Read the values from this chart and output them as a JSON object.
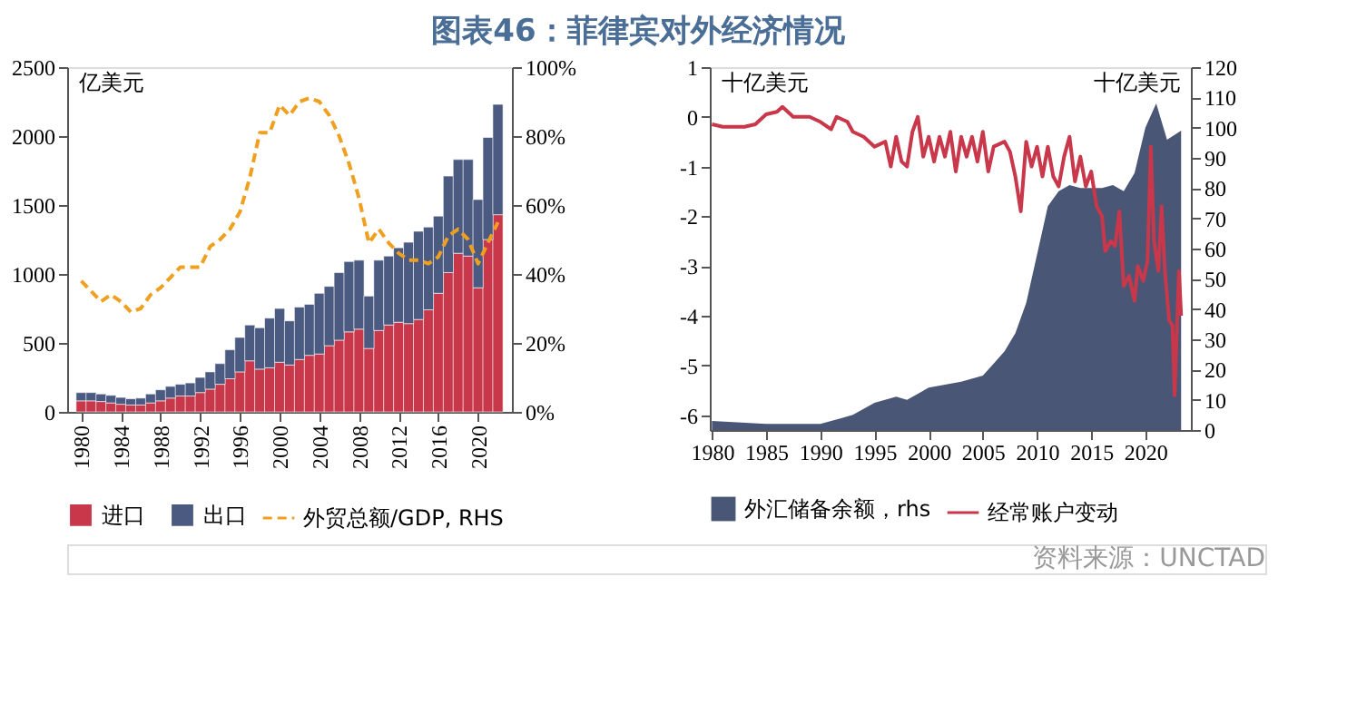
{
  "chart_data": [
    {
      "type": "bar",
      "title": "图表46：菲律宾对外经济情况",
      "stacked": true,
      "ylabel": "亿美元",
      "legend": "bottom",
      "grid": false,
      "x": [
        1980,
        1981,
        1982,
        1983,
        1984,
        1985,
        1986,
        1987,
        1988,
        1989,
        1990,
        1991,
        1992,
        1993,
        1994,
        1995,
        1996,
        1997,
        1998,
        1999,
        2000,
        2001,
        2002,
        2003,
        2004,
        2005,
        2006,
        2007,
        2008,
        2009,
        2010,
        2011,
        2012,
        2013,
        2014,
        2015,
        2016,
        2017,
        2018,
        2019,
        2020,
        2021,
        2022
      ],
      "xlim": [
        1979.5,
        2022.5
      ],
      "xticks": [
        1980,
        1984,
        1988,
        1992,
        1996,
        2000,
        2004,
        2008,
        2012,
        2016,
        2020
      ],
      "ylim": [
        0,
        2500
      ],
      "yticks": [
        0,
        500,
        1000,
        1500,
        2000,
        2500
      ],
      "y2lim": [
        0,
        100
      ],
      "y2ticks": [
        {
          "value": 0,
          "label": "0%"
        },
        {
          "value": 20,
          "label": "20%"
        },
        {
          "value": 40,
          "label": "40%"
        },
        {
          "value": 60,
          "label": "60%"
        },
        {
          "value": 80,
          "label": "80%"
        },
        {
          "value": 100,
          "label": "100%"
        }
      ],
      "series": [
        {
          "name": "进口",
          "type": "bar",
          "color": "#c8374a",
          "values": [
            80,
            80,
            75,
            65,
            55,
            50,
            50,
            65,
            80,
            100,
            115,
            115,
            140,
            165,
            200,
            240,
            290,
            370,
            310,
            320,
            360,
            340,
            380,
            410,
            420,
            480,
            520,
            580,
            600,
            460,
            590,
            630,
            650,
            640,
            670,
            740,
            860,
            1010,
            1150,
            1130,
            900,
            1250,
            1430
          ]
        },
        {
          "name": "出口",
          "type": "bar",
          "color": "#4a5a80",
          "values": [
            60,
            60,
            55,
            55,
            50,
            45,
            50,
            65,
            80,
            85,
            85,
            95,
            110,
            125,
            150,
            210,
            250,
            260,
            300,
            360,
            390,
            320,
            380,
            370,
            440,
            430,
            490,
            510,
            500,
            380,
            510,
            500,
            540,
            590,
            640,
            600,
            560,
            700,
            680,
            700,
            640,
            740,
            800
          ]
        },
        {
          "name": "外贸总额/GDP, RHS",
          "type": "line",
          "axis": "y2",
          "line_style": "dashed",
          "color": "#f0a020",
          "values": [
            38,
            35,
            32,
            34,
            32,
            29,
            30,
            34,
            36,
            39,
            42,
            42,
            42,
            48,
            50,
            53,
            58,
            68,
            81,
            81,
            89,
            86,
            90,
            91,
            90,
            86,
            80,
            72,
            62,
            49,
            53,
            49,
            46,
            44,
            44,
            43,
            45,
            51,
            53,
            50,
            43,
            49,
            55
          ]
        }
      ]
    },
    {
      "type": "line",
      "ylabel": "十亿美元",
      "y2label": "十亿美元",
      "legend": "bottom",
      "grid": false,
      "annotations": [
        "资料来源：UNCTAD"
      ],
      "xlim": [
        1979.8,
        2024.2
      ],
      "xticks": [
        1980,
        1985,
        1990,
        1995,
        2000,
        2005,
        2010,
        2015,
        2020
      ],
      "ylim": [
        -6.3,
        1
      ],
      "yticks": [
        -6,
        -5,
        -4,
        -3,
        -2,
        -1,
        0,
        1
      ],
      "y2lim": [
        0,
        120
      ],
      "y2ticks": [
        0,
        10,
        20,
        30,
        40,
        50,
        60,
        70,
        80,
        90,
        100,
        110,
        120
      ],
      "series": [
        {
          "name": "外汇储备余额，rhs",
          "type": "area",
          "axis": "y2",
          "color": "#4a5675",
          "x": [
            1980,
            1985,
            1990,
            1992,
            1993,
            1995,
            1997,
            1998,
            2000,
            2003,
            2005,
            2006,
            2007,
            2008,
            2009,
            2010,
            2011,
            2012,
            2013,
            2014,
            2015,
            2016,
            2017,
            2018,
            2019,
            2020,
            2021,
            2022,
            2023.3
          ],
          "values": [
            3,
            2,
            2,
            4,
            5,
            9,
            11,
            10,
            14,
            16,
            18,
            22,
            26,
            32,
            42,
            58,
            74,
            79,
            81,
            80,
            80,
            80,
            81,
            79,
            85,
            100,
            108,
            96,
            99
          ]
        },
        {
          "name": "经常账户变动",
          "type": "line",
          "color": "#c8374a",
          "x": [
            1980,
            1981,
            1982,
            1983,
            1984,
            1985,
            1986,
            1986.5,
            1987.5,
            1989,
            1990,
            1991,
            1991.5,
            1992.5,
            1993,
            1994,
            1995,
            1996,
            1996.5,
            1997,
            1997.5,
            1998,
            1998.5,
            1999,
            1999.5,
            2000,
            2000.5,
            2001,
            2001.5,
            2002,
            2002.5,
            2003,
            2003.5,
            2004,
            2004.5,
            2005,
            2005.5,
            2006,
            2007,
            2007.5,
            2008,
            2008.5,
            2009,
            2009.5,
            2010,
            2010.5,
            2011,
            2011.5,
            2012,
            2012.5,
            2013,
            2013.5,
            2014,
            2014.5,
            2015,
            2015.5,
            2016,
            2016.3,
            2016.8,
            2017.2,
            2017.6,
            2018,
            2018.5,
            2019,
            2019.3,
            2019.8,
            2020.2,
            2020.5,
            2020.8,
            2021.2,
            2021.5,
            2021.8,
            2022.2,
            2022.5,
            2022.7,
            2023.1,
            2023.3
          ],
          "values": [
            -0.15,
            -0.2,
            -0.2,
            -0.2,
            -0.15,
            0.05,
            0.1,
            0.2,
            0.0,
            0.0,
            -0.1,
            -0.25,
            0.0,
            -0.1,
            -0.3,
            -0.4,
            -0.6,
            -0.5,
            -1.0,
            -0.4,
            -0.9,
            -1.0,
            -0.3,
            0.0,
            -0.8,
            -0.4,
            -0.9,
            -0.4,
            -0.8,
            -0.3,
            -1.1,
            -0.4,
            -0.8,
            -0.4,
            -0.9,
            -0.3,
            -1.1,
            -0.6,
            -0.5,
            -0.7,
            -1.2,
            -1.9,
            -0.5,
            -1.0,
            -0.6,
            -1.2,
            -0.6,
            -1.2,
            -1.4,
            -0.8,
            -0.4,
            -1.3,
            -0.8,
            -1.4,
            -1.1,
            -1.8,
            -2.0,
            -2.7,
            -2.5,
            -2.6,
            -1.9,
            -3.4,
            -3.2,
            -3.7,
            -3.0,
            -3.3,
            -2.9,
            -0.6,
            -2.5,
            -3.1,
            -1.8,
            -3.1,
            -4.1,
            -4.2,
            -5.6,
            -3.1,
            -4.0
          ]
        }
      ]
    }
  ]
}
